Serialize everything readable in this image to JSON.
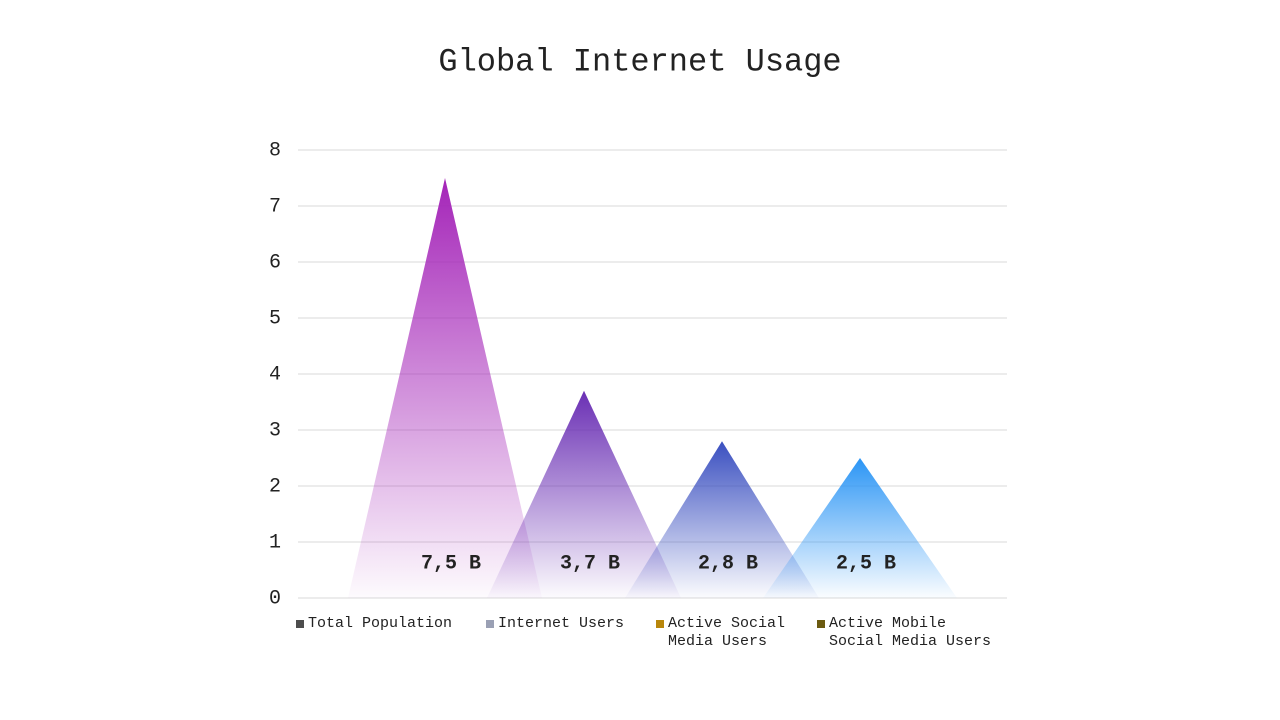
{
  "chart_data": {
    "type": "triangle",
    "title": "Global Internet Usage",
    "series": [
      {
        "name": "Total Population",
        "color": "#a424b8",
        "legend_color": "#4d4d4d",
        "values": [
          7.5
        ],
        "value_labels": [
          "7,5 B"
        ]
      },
      {
        "name": "Internet Users",
        "color": "#6a2fb4",
        "legend_color": "#9aa0b4",
        "values": [
          3.7
        ],
        "value_labels": [
          "3,7 B"
        ]
      },
      {
        "name": "Active Social Media Users",
        "color": "#3a4fc0",
        "legend_color": "#b8860b",
        "values": [
          2.8
        ],
        "value_labels": [
          "2,8 B"
        ]
      },
      {
        "name": "Active Mobile Social Media Users",
        "color": "#2b95f5",
        "legend_color": "#6b5a10",
        "values": [
          2.5
        ],
        "value_labels": [
          "2,5 B"
        ]
      }
    ],
    "ylim": [
      0,
      8
    ],
    "yticks": [
      0,
      1,
      2,
      3,
      4,
      5,
      6,
      7,
      8
    ],
    "grid": true
  }
}
